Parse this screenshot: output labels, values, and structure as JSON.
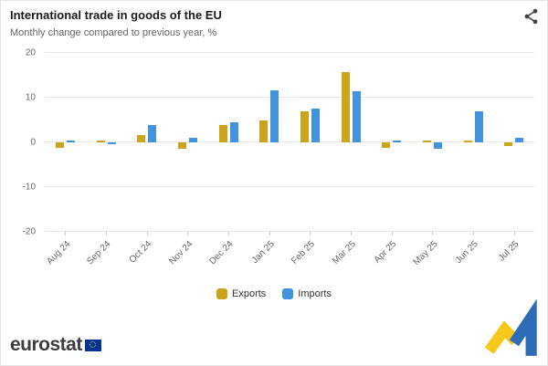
{
  "header": {
    "title": "International trade in goods of the EU",
    "subtitle": "Monthly change compared to previous year, %"
  },
  "chart_data": {
    "type": "bar",
    "title": "International trade in goods of the EU",
    "subtitle": "Monthly change compared to previous year, %",
    "categories": [
      "Aug 24",
      "Sep 24",
      "Oct 24",
      "Nov 24",
      "Dec 24",
      "Jan 25",
      "Feb 25",
      "Mar 25",
      "Apr 25",
      "May 25",
      "Jun 25",
      "Jul 25"
    ],
    "series": [
      {
        "name": "Exports",
        "color": "#CCA41C",
        "values": [
          -1.3,
          0.5,
          1.6,
          -1.4,
          3.9,
          4.9,
          7.0,
          15.8,
          -1.2,
          0.4,
          0.5,
          -0.9
        ]
      },
      {
        "name": "Imports",
        "color": "#4193DE",
        "values": [
          0.4,
          -0.5,
          3.9,
          1.1,
          4.5,
          11.6,
          7.5,
          11.4,
          0.5,
          -1.5,
          6.9,
          1.1
        ]
      }
    ],
    "xlabel": "",
    "ylabel": "",
    "ylim": [
      -20,
      20
    ],
    "yticks": [
      20,
      10,
      0,
      -10,
      -20
    ],
    "grid": true,
    "legend_position": "bottom"
  },
  "colors": {
    "exports": "#CCA41C",
    "imports": "#4193DE",
    "eu_flag_blue": "#003399",
    "eu_star_yellow": "#FFCC00",
    "logo_yellow": "#F8C71C",
    "logo_blue": "#2E6DB5"
  },
  "footer": {
    "brand": "eurostat"
  }
}
